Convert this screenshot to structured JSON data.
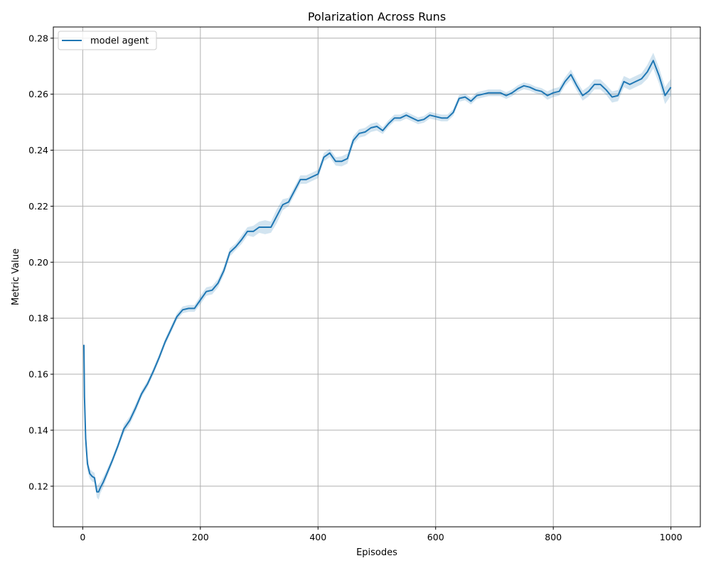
{
  "chart_data": {
    "type": "line",
    "title": "Polarization Across Runs",
    "xlabel": "Episodes",
    "ylabel": "Metric Value",
    "xlim": [
      -50,
      1050
    ],
    "ylim": [
      0.1055,
      0.284
    ],
    "xticks": [
      0,
      200,
      400,
      600,
      800,
      1000
    ],
    "yticks": [
      0.12,
      0.14,
      0.16,
      0.18,
      0.2,
      0.22,
      0.24,
      0.26,
      0.28
    ],
    "ytick_labels": [
      "0.12",
      "0.14",
      "0.16",
      "0.18",
      "0.20",
      "0.22",
      "0.24",
      "0.26",
      "0.28"
    ],
    "grid": true,
    "legend_position": "upper-left",
    "color": "#1f77b4",
    "band_color": "#1f77b4",
    "series": [
      {
        "name": "model agent",
        "x": [
          2,
          3,
          5,
          8,
          12,
          16,
          20,
          24,
          27,
          30,
          35,
          40,
          50,
          60,
          70,
          80,
          90,
          100,
          110,
          120,
          130,
          140,
          150,
          160,
          170,
          180,
          190,
          200,
          210,
          220,
          230,
          240,
          250,
          260,
          270,
          280,
          290,
          300,
          310,
          320,
          330,
          340,
          350,
          360,
          370,
          380,
          390,
          400,
          410,
          420,
          430,
          440,
          450,
          460,
          470,
          480,
          490,
          500,
          510,
          520,
          530,
          540,
          550,
          560,
          570,
          580,
          590,
          600,
          610,
          620,
          630,
          640,
          650,
          660,
          670,
          680,
          690,
          700,
          710,
          720,
          730,
          740,
          750,
          760,
          770,
          780,
          790,
          800,
          810,
          820,
          830,
          840,
          850,
          860,
          870,
          880,
          890,
          900,
          910,
          920,
          930,
          940,
          950,
          960,
          970,
          980,
          990,
          1000
        ],
        "y": [
          0.1705,
          0.152,
          0.137,
          0.128,
          0.1245,
          0.1235,
          0.123,
          0.118,
          0.118,
          0.1195,
          0.1215,
          0.124,
          0.129,
          0.1345,
          0.1405,
          0.1435,
          0.148,
          0.153,
          0.1565,
          0.161,
          0.166,
          0.1715,
          0.176,
          0.1805,
          0.183,
          0.1835,
          0.1835,
          0.1865,
          0.1895,
          0.19,
          0.1925,
          0.197,
          0.2035,
          0.2055,
          0.208,
          0.211,
          0.211,
          0.2125,
          0.2125,
          0.2125,
          0.2165,
          0.2205,
          0.2215,
          0.2255,
          0.2295,
          0.2295,
          0.2305,
          0.2315,
          0.2375,
          0.239,
          0.236,
          0.236,
          0.237,
          0.2435,
          0.246,
          0.2465,
          0.248,
          0.2485,
          0.247,
          0.2495,
          0.2515,
          0.2515,
          0.2525,
          0.2515,
          0.2505,
          0.251,
          0.2525,
          0.252,
          0.2515,
          0.2515,
          0.2535,
          0.2585,
          0.259,
          0.2575,
          0.2595,
          0.26,
          0.2605,
          0.2605,
          0.2605,
          0.2595,
          0.2605,
          0.262,
          0.263,
          0.2625,
          0.2615,
          0.261,
          0.2595,
          0.2605,
          0.261,
          0.2645,
          0.267,
          0.263,
          0.2595,
          0.261,
          0.2635,
          0.2635,
          0.2615,
          0.259,
          0.2595,
          0.2645,
          0.2635,
          0.2645,
          0.2655,
          0.268,
          0.272,
          0.2665,
          0.2595,
          0.2625
        ],
        "band": [
          0.0025,
          0.006,
          0.0035,
          0.0025,
          0.0018,
          0.0018,
          0.0018,
          0.002,
          0.0028,
          0.002,
          0.0018,
          0.0015,
          0.0012,
          0.0012,
          0.0015,
          0.0015,
          0.0015,
          0.0012,
          0.0012,
          0.0012,
          0.0012,
          0.0012,
          0.0012,
          0.0012,
          0.0012,
          0.0012,
          0.0012,
          0.0015,
          0.0015,
          0.0015,
          0.0015,
          0.0015,
          0.0015,
          0.0012,
          0.0015,
          0.0015,
          0.002,
          0.002,
          0.0025,
          0.002,
          0.0025,
          0.002,
          0.0015,
          0.0015,
          0.0015,
          0.0015,
          0.0015,
          0.0015,
          0.0015,
          0.0015,
          0.0015,
          0.0018,
          0.0018,
          0.0015,
          0.0015,
          0.0015,
          0.0015,
          0.0015,
          0.0012,
          0.0012,
          0.0012,
          0.0012,
          0.0012,
          0.0012,
          0.0012,
          0.0012,
          0.0012,
          0.0012,
          0.0012,
          0.0012,
          0.0012,
          0.0012,
          0.0012,
          0.0012,
          0.0012,
          0.0012,
          0.0012,
          0.0012,
          0.0012,
          0.0012,
          0.0012,
          0.0012,
          0.0012,
          0.0012,
          0.0012,
          0.0012,
          0.0015,
          0.0015,
          0.0015,
          0.0015,
          0.0018,
          0.0018,
          0.0018,
          0.0018,
          0.0018,
          0.0018,
          0.0018,
          0.002,
          0.002,
          0.002,
          0.002,
          0.002,
          0.002,
          0.0025,
          0.0028,
          0.0028,
          0.003,
          0.003
        ]
      }
    ]
  }
}
